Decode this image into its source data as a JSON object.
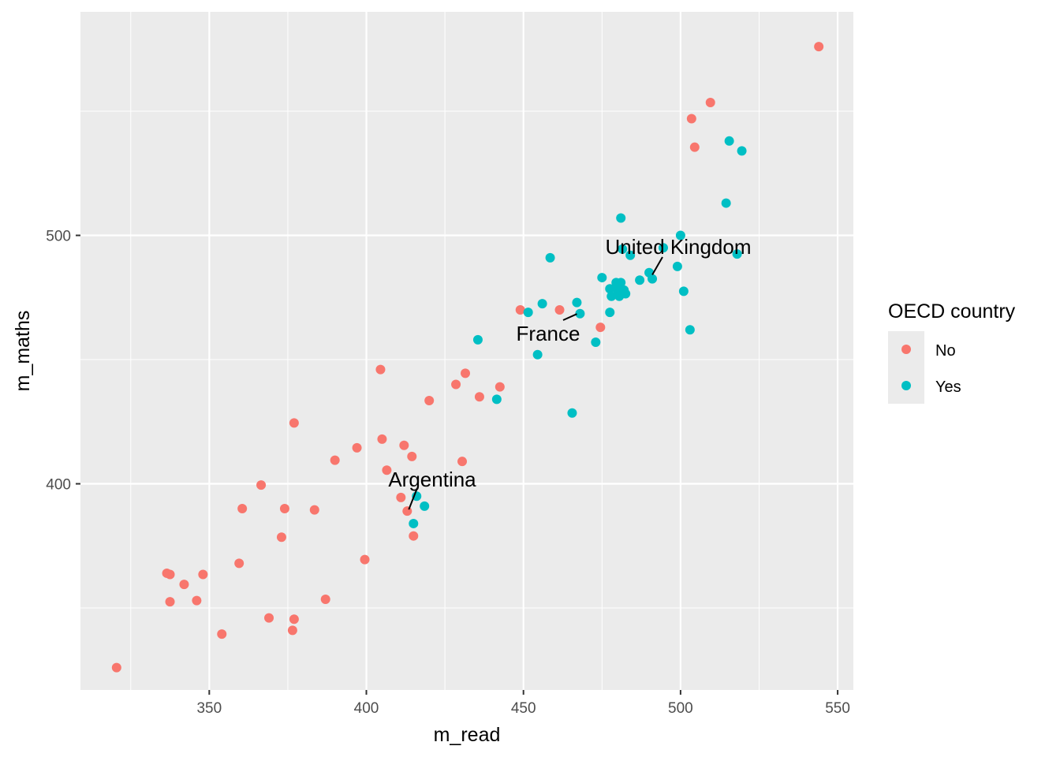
{
  "chart_data": {
    "type": "scatter",
    "title": "",
    "xlabel": "m_read",
    "ylabel": "m_maths",
    "xlim": [
      309,
      555
    ],
    "ylim": [
      317,
      590
    ],
    "xticks": [
      350,
      400,
      450,
      500,
      550
    ],
    "yticks": [
      400,
      500
    ],
    "grid": true,
    "legend": {
      "title": "OECD country",
      "position": "right",
      "entries": [
        {
          "label": "No",
          "color": "#F8766D"
        },
        {
          "label": "Yes",
          "color": "#00BFC4"
        }
      ]
    },
    "series": [
      {
        "name": "No",
        "color": "#F8766D",
        "points": [
          [
            544,
            576
          ],
          [
            509.5,
            553.5
          ],
          [
            503.5,
            547
          ],
          [
            504.5,
            535.5
          ],
          [
            320.5,
            326
          ],
          [
            336.5,
            364
          ],
          [
            337.5,
            363.5
          ],
          [
            337.5,
            352.5
          ],
          [
            342,
            359.5
          ],
          [
            346,
            353
          ],
          [
            348,
            363.5
          ],
          [
            354,
            339.5
          ],
          [
            359.5,
            368
          ],
          [
            360.5,
            390
          ],
          [
            366.5,
            399.5
          ],
          [
            369,
            346
          ],
          [
            373,
            378.5
          ],
          [
            374,
            390
          ],
          [
            376.5,
            341
          ],
          [
            377,
            345.5
          ],
          [
            377,
            424.5
          ],
          [
            383.5,
            389.5
          ],
          [
            387,
            353.5
          ],
          [
            390,
            409.5
          ],
          [
            397,
            414.5
          ],
          [
            399.5,
            369.5
          ],
          [
            404.5,
            446
          ],
          [
            405,
            418
          ],
          [
            406.5,
            405.5
          ],
          [
            411,
            394.5
          ],
          [
            412,
            415.5
          ],
          [
            413,
            389
          ],
          [
            414.5,
            411
          ],
          [
            415,
            379
          ],
          [
            420,
            433.5
          ],
          [
            428.5,
            440
          ],
          [
            430.5,
            409
          ],
          [
            431.5,
            444.5
          ],
          [
            436,
            435
          ],
          [
            442.5,
            439
          ],
          [
            449,
            470
          ],
          [
            461.5,
            470
          ],
          [
            474.5,
            463
          ]
        ]
      },
      {
        "name": "Yes",
        "color": "#00BFC4",
        "points": [
          [
            515.5,
            538
          ],
          [
            519.5,
            534
          ],
          [
            514.5,
            513
          ],
          [
            481,
            507
          ],
          [
            500,
            500
          ],
          [
            481.5,
            494.5
          ],
          [
            484,
            492
          ],
          [
            494.5,
            495
          ],
          [
            518,
            492.5
          ],
          [
            458.5,
            491
          ],
          [
            499,
            487.5
          ],
          [
            490,
            485
          ],
          [
            491,
            482.5
          ],
          [
            487,
            482
          ],
          [
            475,
            483
          ],
          [
            479.5,
            481
          ],
          [
            481,
            481
          ],
          [
            477.5,
            478.5
          ],
          [
            480,
            478
          ],
          [
            482,
            478
          ],
          [
            478,
            475.5
          ],
          [
            480.5,
            475.5
          ],
          [
            482.5,
            476.5
          ],
          [
            501,
            477.5
          ],
          [
            456,
            472.5
          ],
          [
            467,
            473
          ],
          [
            451.5,
            469
          ],
          [
            468,
            468.5
          ],
          [
            477.5,
            469
          ],
          [
            503,
            462
          ],
          [
            435.5,
            458
          ],
          [
            473,
            457
          ],
          [
            454.5,
            452
          ],
          [
            441.5,
            434
          ],
          [
            465.5,
            428.5
          ],
          [
            416,
            395
          ],
          [
            418.5,
            391
          ],
          [
            415,
            384
          ]
        ]
      }
    ],
    "annotations": [
      {
        "label": "United Kingdom",
        "x": 490.5,
        "y": 483.5
      },
      {
        "label": "France",
        "x": 467.5,
        "y": 469
      },
      {
        "label": "Argentina",
        "x": 413,
        "y": 389
      }
    ]
  }
}
